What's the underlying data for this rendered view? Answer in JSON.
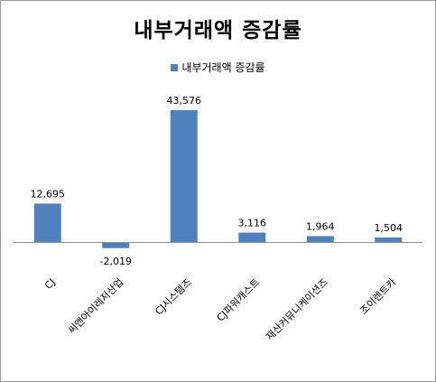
{
  "chart_data": {
    "type": "bar",
    "title": "내부거래액 증감률",
    "legend": "내부거래액 증감률",
    "legend_position": "top",
    "categories": [
      "CJ",
      "씨앤아이레저산업",
      "CJ시스템즈",
      "CJ파워캐스트",
      "재산커뮤니케이션즈",
      "조이렌트카"
    ],
    "values": [
      12695,
      -2019,
      43576,
      3116,
      1964,
      1504
    ],
    "value_labels": [
      "12,695",
      "-2,019",
      "43,576",
      "3,116",
      "1,964",
      "1,504"
    ],
    "series_color": "#4f81bd",
    "grid": false,
    "ylim": [
      -2019,
      43576
    ]
  }
}
